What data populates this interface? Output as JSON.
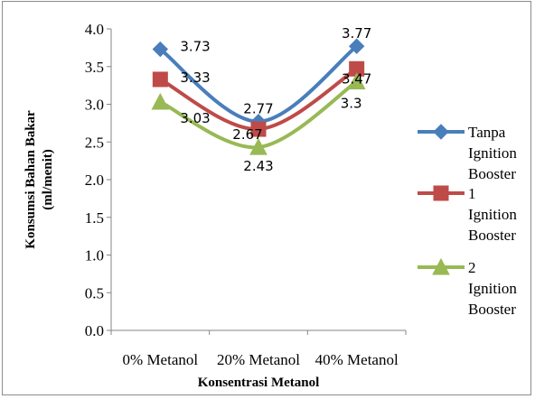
{
  "chart_data": {
    "type": "line",
    "title": "",
    "xlabel": "Konsentrasi Metanol",
    "ylabel_lines": [
      "Konsumsi Bahan Bakar",
      "(ml/menit)"
    ],
    "categories": [
      "0% Metanol",
      "20% Metanol",
      "40% Metanol"
    ],
    "ylim": [
      0,
      4
    ],
    "yticks": [
      "0.0",
      "0.5",
      "1.0",
      "1.5",
      "2.0",
      "2.5",
      "3.0",
      "3.5",
      "4.0"
    ],
    "ytick_values": [
      0,
      0.5,
      1,
      1.5,
      2,
      2.5,
      3,
      3.5,
      4
    ],
    "grid": false,
    "smooth": true,
    "legend_position": "right",
    "series": [
      {
        "name_lines": [
          "Tanpa",
          "Ignition",
          "Booster"
        ],
        "values": [
          3.73,
          2.77,
          3.77
        ],
        "labels": [
          "3.73",
          "2.77",
          "3.77"
        ],
        "color": "#4a7ebb",
        "marker": "diamond"
      },
      {
        "name_lines": [
          "1",
          "Ignition",
          "Booster"
        ],
        "values": [
          3.33,
          2.67,
          3.47
        ],
        "labels": [
          "3.33",
          "2.67",
          "3.47"
        ],
        "color": "#be4b48",
        "marker": "square"
      },
      {
        "name_lines": [
          "2",
          "Ignition",
          "Booster"
        ],
        "values": [
          3.03,
          2.43,
          3.3
        ],
        "labels": [
          "3.03",
          "2.43",
          "3.3"
        ],
        "color": "#98b954",
        "marker": "triangle"
      }
    ]
  }
}
